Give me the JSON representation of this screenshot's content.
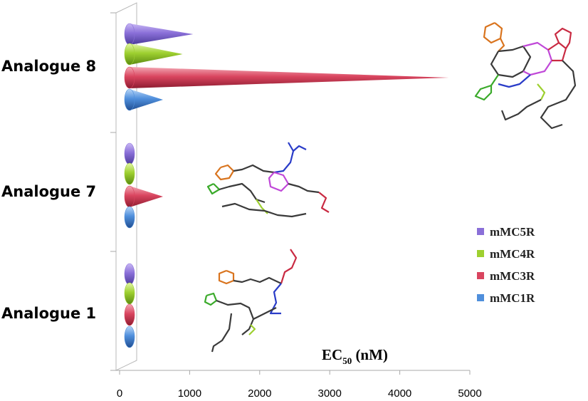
{
  "chart_data": {
    "type": "bar",
    "orientation": "horizontal",
    "bar_shape": "cone",
    "categories": [
      "Analogue 8",
      "Analogue 7",
      "Analogue 1"
    ],
    "series": [
      {
        "name": "mMC5R",
        "color": "#8a6fd8",
        "values": [
          1050,
          80,
          60
        ]
      },
      {
        "name": "mMC4R",
        "color": "#9ed030",
        "values": [
          900,
          80,
          60
        ]
      },
      {
        "name": "mMC3R",
        "color": "#d9455f",
        "values": [
          4700,
          620,
          60
        ]
      },
      {
        "name": "mMC1R",
        "color": "#4f8fdc",
        "values": [
          620,
          60,
          60
        ]
      }
    ],
    "xlabel": "EC",
    "xlabel_sub": "50",
    "xlabel_unit": " (nM)",
    "xlim": [
      0,
      5000
    ],
    "x_ticks": [
      "0",
      "1000",
      "2000",
      "3000",
      "4000",
      "5000"
    ],
    "legend_placement": "right",
    "grid": false
  }
}
